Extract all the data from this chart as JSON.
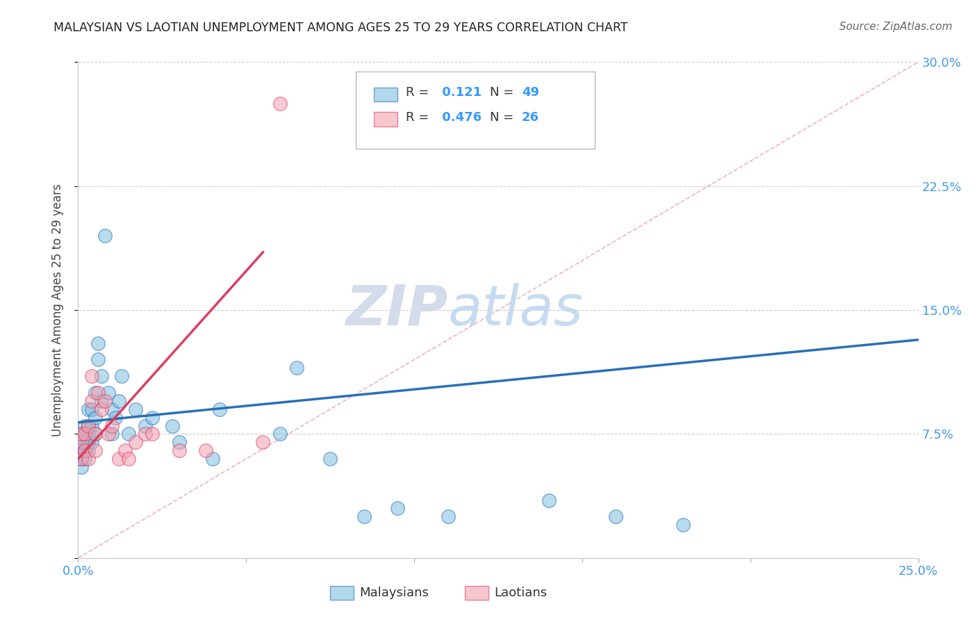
{
  "title": "MALAYSIAN VS LAOTIAN UNEMPLOYMENT AMONG AGES 25 TO 29 YEARS CORRELATION CHART",
  "source": "Source: ZipAtlas.com",
  "ylabel": "Unemployment Among Ages 25 to 29 years",
  "xlim": [
    0.0,
    0.25
  ],
  "ylim": [
    0.0,
    0.3
  ],
  "malaysian_color": "#7fbfdf",
  "laotian_color": "#f4a0b0",
  "trend_malaysian_color": "#2970b8",
  "trend_laotian_color": "#d94060",
  "diagonal_color": "#f0b0c0",
  "R_malaysian": 0.121,
  "N_malaysian": 49,
  "R_laotian": 0.476,
  "N_laotian": 26,
  "watermark_zip": "ZIP",
  "watermark_atlas": "atlas",
  "malaysian_x": [
    0.001,
    0.001,
    0.001,
    0.001,
    0.001,
    0.002,
    0.002,
    0.002,
    0.002,
    0.002,
    0.003,
    0.003,
    0.003,
    0.003,
    0.003,
    0.004,
    0.004,
    0.004,
    0.005,
    0.005,
    0.005,
    0.006,
    0.006,
    0.007,
    0.007,
    0.008,
    0.009,
    0.01,
    0.01,
    0.011,
    0.012,
    0.013,
    0.015,
    0.017,
    0.02,
    0.022,
    0.028,
    0.03,
    0.04,
    0.042,
    0.06,
    0.065,
    0.075,
    0.085,
    0.095,
    0.11,
    0.14,
    0.16,
    0.18
  ],
  "malaysian_y": [
    0.055,
    0.06,
    0.065,
    0.07,
    0.075,
    0.06,
    0.065,
    0.07,
    0.075,
    0.08,
    0.065,
    0.07,
    0.075,
    0.08,
    0.09,
    0.07,
    0.08,
    0.09,
    0.075,
    0.085,
    0.1,
    0.12,
    0.13,
    0.11,
    0.095,
    0.195,
    0.1,
    0.09,
    0.075,
    0.085,
    0.095,
    0.11,
    0.075,
    0.09,
    0.08,
    0.085,
    0.08,
    0.07,
    0.06,
    0.09,
    0.075,
    0.115,
    0.06,
    0.025,
    0.03,
    0.025,
    0.035,
    0.025,
    0.02
  ],
  "laotian_x": [
    0.001,
    0.001,
    0.001,
    0.002,
    0.002,
    0.003,
    0.003,
    0.004,
    0.004,
    0.005,
    0.005,
    0.006,
    0.007,
    0.008,
    0.009,
    0.01,
    0.012,
    0.014,
    0.015,
    0.017,
    0.02,
    0.022,
    0.03,
    0.038,
    0.055,
    0.06
  ],
  "laotian_y": [
    0.06,
    0.07,
    0.075,
    0.065,
    0.075,
    0.06,
    0.08,
    0.095,
    0.11,
    0.065,
    0.075,
    0.1,
    0.09,
    0.095,
    0.075,
    0.08,
    0.06,
    0.065,
    0.06,
    0.07,
    0.075,
    0.075,
    0.065,
    0.065,
    0.07,
    0.275
  ],
  "trend_m_x0": 0.0,
  "trend_m_x1": 0.25,
  "trend_m_y0": 0.082,
  "trend_m_y1": 0.132,
  "trend_l_x0": 0.0,
  "trend_l_x1": 0.055,
  "trend_l_y0": 0.06,
  "trend_l_y1": 0.185
}
